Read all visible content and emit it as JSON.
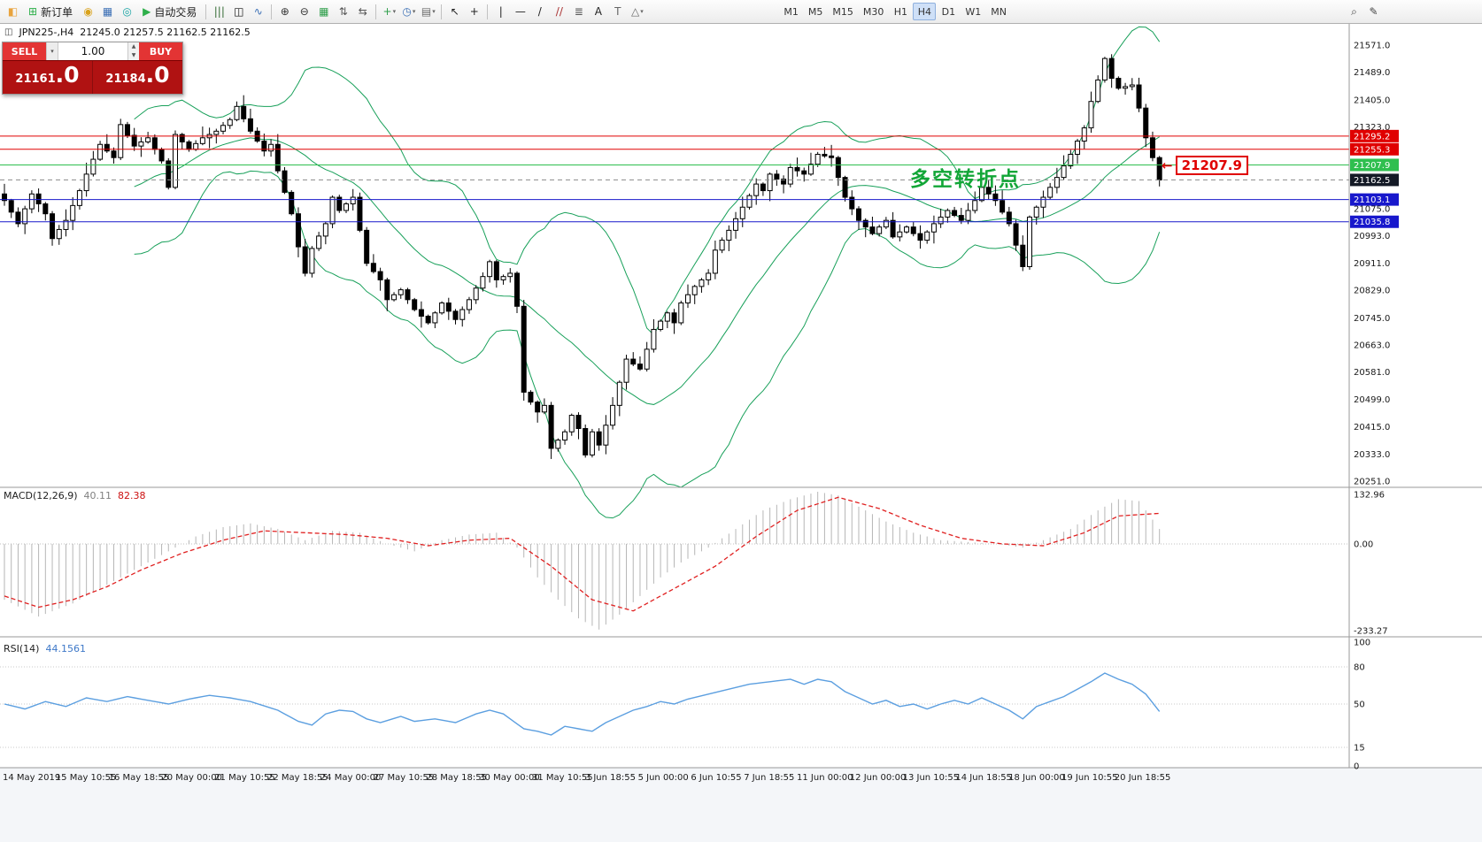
{
  "icons": {
    "chart_window": "◫",
    "dropdown": "▾",
    "spin_up": "▲",
    "spin_down": "▼",
    "callout_arrow": "←"
  },
  "toolbar": {
    "left_items": [
      {
        "type": "icon",
        "name": "app-icon",
        "glyph": "◧",
        "color": "#e8a33d"
      },
      {
        "type": "button",
        "name": "new-order-button",
        "label": "新订单",
        "glyph": "⊞",
        "color": "#2eaf4a"
      },
      {
        "type": "icon",
        "name": "coins-icon",
        "glyph": "◉",
        "color": "#d9a21b"
      },
      {
        "type": "icon",
        "name": "accounts-icon",
        "glyph": "▦",
        "color": "#3b6fb5"
      },
      {
        "type": "icon",
        "name": "sound-icon",
        "glyph": "◎",
        "color": "#18a3a3"
      },
      {
        "type": "button",
        "name": "autotrading-button",
        "label": "自动交易",
        "glyph": "▶",
        "color": "#2eaf4a"
      },
      {
        "type": "sep"
      },
      {
        "type": "icon",
        "name": "bar-chart-icon",
        "glyph": "|||",
        "color": "#356c35"
      },
      {
        "type": "icon",
        "name": "candlestick-chart-icon",
        "glyph": "◫",
        "color": "#111111"
      },
      {
        "type": "icon",
        "name": "line-chart-icon",
        "glyph": "∿",
        "color": "#3b6fb5"
      },
      {
        "type": "sep"
      },
      {
        "type": "icon",
        "name": "zoom-in-icon",
        "glyph": "⊕",
        "color": "#333333"
      },
      {
        "type": "icon",
        "name": "zoom-out-icon",
        "glyph": "⊖",
        "color": "#333333"
      },
      {
        "type": "icon",
        "name": "tile-windows-icon",
        "glyph": "▦",
        "color": "#2e9e4a"
      },
      {
        "type": "icon",
        "name": "auto-arrange-icon",
        "glyph": "⇅",
        "color": "#555555"
      },
      {
        "type": "icon",
        "name": "track-chart-icon",
        "glyph": "⇆",
        "color": "#555555"
      },
      {
        "type": "sep"
      },
      {
        "type": "icon-dd",
        "name": "add-indicator-icon",
        "glyph": "+",
        "color": "#2e9e4a"
      },
      {
        "type": "icon-dd",
        "name": "periods-icon",
        "glyph": "◷",
        "color": "#3b6fb5"
      },
      {
        "type": "icon-dd",
        "name": "templates-icon",
        "glyph": "▤",
        "color": "#6b6b6b"
      },
      {
        "type": "sep"
      },
      {
        "type": "icon",
        "name": "cursor-icon",
        "glyph": "↖",
        "color": "#222222"
      },
      {
        "type": "icon",
        "name": "crosshair-icon",
        "glyph": "+",
        "color": "#222222"
      },
      {
        "type": "sep"
      },
      {
        "type": "icon",
        "name": "vertical-line-icon",
        "glyph": "|",
        "color": "#222222"
      },
      {
        "type": "icon",
        "name": "horizontal-line-icon",
        "glyph": "—",
        "color": "#222222"
      },
      {
        "type": "icon",
        "name": "trendline-icon",
        "glyph": "/",
        "color": "#222222"
      },
      {
        "type": "icon",
        "name": "equidistant-channel-icon",
        "glyph": "//",
        "color": "#aa3333"
      },
      {
        "type": "icon",
        "name": "fibonacci-icon",
        "glyph": "≣",
        "color": "#555555"
      },
      {
        "type": "icon",
        "name": "text-icon",
        "glyph": "A",
        "color": "#222222"
      },
      {
        "type": "icon",
        "name": "text-label-icon",
        "glyph": "T",
        "color": "#666666"
      },
      {
        "type": "icon-dd",
        "name": "arrows-icon",
        "glyph": "△",
        "color": "#666666"
      }
    ],
    "timeframes": [
      "M1",
      "M5",
      "M15",
      "M30",
      "H1",
      "H4",
      "D1",
      "W1",
      "MN"
    ],
    "active_timeframe": "H4",
    "right_items": [
      {
        "name": "search-icon",
        "glyph": "⌕",
        "color": "#444444"
      },
      {
        "name": "quick-draw-icon",
        "glyph": "✎",
        "color": "#444444"
      }
    ]
  },
  "symbol_header": {
    "symbol_period": "JPN225-,H4",
    "ohlc": "21245.0 21257.5 21162.5 21162.5"
  },
  "trade_panel": {
    "sell_label": "SELL",
    "buy_label": "BUY",
    "volume": "1.00",
    "sell_price_main": "21161",
    "sell_price_frac": ".0",
    "buy_price_main": "21184",
    "buy_price_frac": ".0"
  },
  "chart": {
    "annotation": "多空转折点",
    "price_callout": "21207.9",
    "levels": [
      {
        "price": 21295.2,
        "label": "21295.2",
        "color": "#e00000",
        "style": "solid",
        "badge": "#e00000",
        "text": "#ffffff"
      },
      {
        "price": 21255.3,
        "label": "21255.3",
        "color": "#e00000",
        "style": "solid",
        "badge": "#e00000",
        "text": "#ffffff"
      },
      {
        "price": 21207.9,
        "label": "21207.9",
        "color": "#2fbf4f",
        "style": "solid",
        "badge": "#2fbf4f",
        "text": "#ffffff"
      },
      {
        "price": 21162.5,
        "label": "21162.5",
        "color": "#8a8a8a",
        "style": "dashed",
        "badge": "#141a26",
        "text": "#ffffff"
      },
      {
        "price": 21103.1,
        "label": "21103.1",
        "color": "#1818cc",
        "style": "solid",
        "badge": "#1818cc",
        "text": "#ffffff"
      },
      {
        "price": 21035.8,
        "label": "21035.8",
        "color": "#1818cc",
        "style": "solid",
        "badge": "#1818cc",
        "text": "#ffffff"
      }
    ],
    "y_axis_labels": [
      21571.0,
      21489.0,
      21405.0,
      21323.0,
      21075.0,
      20993.0,
      20911.0,
      20829.0,
      20745.0,
      20663.0,
      20581.0,
      20499.0,
      20415.0,
      20333.0,
      20251.0
    ],
    "x_axis_labels": [
      "14 May 2019",
      "15 May 10:55",
      "16 May 18:55",
      "20 May 00:00",
      "21 May 10:55",
      "22 May 18:55",
      "24 May 00:00",
      "27 May 10:55",
      "28 May 18:55",
      "30 May 00:00",
      "31 May 10:55",
      "3 Jun 18:55",
      "5 Jun 00:00",
      "6 Jun 10:55",
      "7 Jun 18:55",
      "11 Jun 00:00",
      "12 Jun 00:00",
      "13 Jun 10:55",
      "14 Jun 18:55",
      "18 Jun 00:00",
      "19 Jun 10:55",
      "20 Jun 18:55"
    ]
  },
  "chart_data": {
    "type": "candlestick",
    "symbol": "JPN225-",
    "timeframe": "H4",
    "last_ohlc": {
      "open": 21245.0,
      "high": 21257.5,
      "low": 21162.5,
      "close": 21162.5
    },
    "price_range": {
      "min": 20240,
      "max": 21600
    },
    "candle_count": 170,
    "close_anchors": [
      [
        0,
        21100
      ],
      [
        2,
        21030
      ],
      [
        4,
        21120
      ],
      [
        6,
        21060
      ],
      [
        7,
        20985
      ],
      [
        9,
        21040
      ],
      [
        11,
        21130
      ],
      [
        12,
        21180
      ],
      [
        14,
        21270
      ],
      [
        16,
        21230
      ],
      [
        17,
        21330
      ],
      [
        19,
        21265
      ],
      [
        21,
        21290
      ],
      [
        23,
        21220
      ],
      [
        24,
        21140
      ],
      [
        25,
        21300
      ],
      [
        27,
        21255
      ],
      [
        29,
        21290
      ],
      [
        31,
        21310
      ],
      [
        33,
        21345
      ],
      [
        34,
        21385
      ],
      [
        36,
        21310
      ],
      [
        38,
        21250
      ],
      [
        39,
        21270
      ],
      [
        40,
        21190
      ],
      [
        42,
        21060
      ],
      [
        43,
        20960
      ],
      [
        44,
        20880
      ],
      [
        45,
        20955
      ],
      [
        47,
        21030
      ],
      [
        48,
        21110
      ],
      [
        49,
        21070
      ],
      [
        51,
        21110
      ],
      [
        52,
        21010
      ],
      [
        53,
        20910
      ],
      [
        55,
        20860
      ],
      [
        56,
        20800
      ],
      [
        58,
        20830
      ],
      [
        60,
        20770
      ],
      [
        62,
        20730
      ],
      [
        64,
        20790
      ],
      [
        66,
        20740
      ],
      [
        68,
        20800
      ],
      [
        70,
        20870
      ],
      [
        71,
        20915
      ],
      [
        72,
        20860
      ],
      [
        74,
        20880
      ],
      [
        75,
        20780
      ],
      [
        76,
        20520
      ],
      [
        78,
        20460
      ],
      [
        79,
        20480
      ],
      [
        80,
        20350
      ],
      [
        82,
        20400
      ],
      [
        83,
        20450
      ],
      [
        84,
        20410
      ],
      [
        85,
        20330
      ],
      [
        86,
        20400
      ],
      [
        87,
        20360
      ],
      [
        89,
        20480
      ],
      [
        90,
        20550
      ],
      [
        91,
        20620
      ],
      [
        93,
        20590
      ],
      [
        94,
        20650
      ],
      [
        95,
        20710
      ],
      [
        97,
        20760
      ],
      [
        98,
        20730
      ],
      [
        99,
        20790
      ],
      [
        101,
        20840
      ],
      [
        103,
        20880
      ],
      [
        104,
        20950
      ],
      [
        106,
        21010
      ],
      [
        108,
        21080
      ],
      [
        110,
        21150
      ],
      [
        111,
        21130
      ],
      [
        112,
        21180
      ],
      [
        114,
        21150
      ],
      [
        115,
        21200
      ],
      [
        117,
        21180
      ],
      [
        119,
        21240
      ],
      [
        121,
        21230
      ],
      [
        122,
        21170
      ],
      [
        123,
        21110
      ],
      [
        125,
        21040
      ],
      [
        127,
        21000
      ],
      [
        129,
        21040
      ],
      [
        130,
        20990
      ],
      [
        132,
        21020
      ],
      [
        134,
        20980
      ],
      [
        136,
        21030
      ],
      [
        138,
        21070
      ],
      [
        140,
        21040
      ],
      [
        142,
        21100
      ],
      [
        143,
        21140
      ],
      [
        145,
        21100
      ],
      [
        147,
        21030
      ],
      [
        149,
        20900
      ],
      [
        150,
        21050
      ],
      [
        152,
        21110
      ],
      [
        154,
        21170
      ],
      [
        156,
        21240
      ],
      [
        158,
        21320
      ],
      [
        159,
        21400
      ],
      [
        161,
        21530
      ],
      [
        162,
        21470
      ],
      [
        163,
        21440
      ],
      [
        165,
        21450
      ],
      [
        166,
        21380
      ],
      [
        167,
        21290
      ],
      [
        168,
        21230
      ],
      [
        169,
        21162.5
      ]
    ],
    "overlays": {
      "name": "Bollinger Bands",
      "period": 20,
      "deviation": 2,
      "color": "#18a05a"
    },
    "horizontal_line_prices": [
      21295.2,
      21255.3,
      21207.9,
      21103.1,
      21035.8
    ],
    "bid_price": 21162.5,
    "macd": {
      "label": "MACD(12,26,9)",
      "main_value": "40.11",
      "signal_value": "82.38",
      "axis": [
        132.96,
        0,
        -233.27
      ],
      "range": {
        "min": -240,
        "max": 140
      },
      "hist_anchors": [
        [
          0,
          -150
        ],
        [
          5,
          -195
        ],
        [
          10,
          -160
        ],
        [
          15,
          -110
        ],
        [
          20,
          -60
        ],
        [
          25,
          -10
        ],
        [
          28,
          20
        ],
        [
          32,
          45
        ],
        [
          36,
          55
        ],
        [
          40,
          40
        ],
        [
          44,
          10
        ],
        [
          48,
          35
        ],
        [
          52,
          30
        ],
        [
          56,
          0
        ],
        [
          60,
          -20
        ],
        [
          64,
          10
        ],
        [
          68,
          25
        ],
        [
          72,
          30
        ],
        [
          75,
          -10
        ],
        [
          78,
          -90
        ],
        [
          81,
          -150
        ],
        [
          84,
          -200
        ],
        [
          87,
          -230
        ],
        [
          90,
          -190
        ],
        [
          93,
          -140
        ],
        [
          96,
          -90
        ],
        [
          99,
          -50
        ],
        [
          103,
          -10
        ],
        [
          107,
          40
        ],
        [
          111,
          90
        ],
        [
          115,
          120
        ],
        [
          119,
          140
        ],
        [
          122,
          130
        ],
        [
          125,
          100
        ],
        [
          129,
          60
        ],
        [
          133,
          30
        ],
        [
          137,
          10
        ],
        [
          141,
          5
        ],
        [
          145,
          0
        ],
        [
          149,
          -10
        ],
        [
          152,
          10
        ],
        [
          156,
          40
        ],
        [
          160,
          90
        ],
        [
          163,
          120
        ],
        [
          166,
          115
        ],
        [
          169,
          40
        ]
      ],
      "signal_anchors": [
        [
          0,
          -140
        ],
        [
          5,
          -170
        ],
        [
          10,
          -150
        ],
        [
          15,
          -115
        ],
        [
          20,
          -70
        ],
        [
          26,
          -25
        ],
        [
          32,
          10
        ],
        [
          38,
          35
        ],
        [
          44,
          30
        ],
        [
          50,
          25
        ],
        [
          56,
          15
        ],
        [
          62,
          -5
        ],
        [
          68,
          10
        ],
        [
          74,
          15
        ],
        [
          80,
          -60
        ],
        [
          86,
          -150
        ],
        [
          92,
          -180
        ],
        [
          98,
          -120
        ],
        [
          104,
          -60
        ],
        [
          110,
          20
        ],
        [
          116,
          90
        ],
        [
          122,
          125
        ],
        [
          128,
          95
        ],
        [
          134,
          50
        ],
        [
          140,
          15
        ],
        [
          146,
          0
        ],
        [
          152,
          -5
        ],
        [
          158,
          30
        ],
        [
          163,
          75
        ],
        [
          169,
          82
        ]
      ]
    },
    "rsi": {
      "label": "RSI(14)",
      "value": "44.1561",
      "axis": [
        100,
        80,
        50,
        15,
        0
      ],
      "levels": [
        80,
        50,
        15
      ],
      "anchors": [
        [
          0,
          50
        ],
        [
          3,
          46
        ],
        [
          6,
          52
        ],
        [
          9,
          48
        ],
        [
          12,
          55
        ],
        [
          15,
          52
        ],
        [
          18,
          56
        ],
        [
          21,
          53
        ],
        [
          24,
          50
        ],
        [
          27,
          54
        ],
        [
          30,
          57
        ],
        [
          33,
          55
        ],
        [
          36,
          52
        ],
        [
          40,
          45
        ],
        [
          43,
          36
        ],
        [
          45,
          33
        ],
        [
          47,
          42
        ],
        [
          49,
          45
        ],
        [
          51,
          44
        ],
        [
          53,
          38
        ],
        [
          55,
          35
        ],
        [
          58,
          40
        ],
        [
          60,
          36
        ],
        [
          63,
          38
        ],
        [
          66,
          35
        ],
        [
          69,
          42
        ],
        [
          71,
          45
        ],
        [
          73,
          42
        ],
        [
          76,
          30
        ],
        [
          78,
          28
        ],
        [
          80,
          25
        ],
        [
          82,
          32
        ],
        [
          84,
          30
        ],
        [
          86,
          28
        ],
        [
          88,
          35
        ],
        [
          90,
          40
        ],
        [
          92,
          45
        ],
        [
          94,
          48
        ],
        [
          96,
          52
        ],
        [
          98,
          50
        ],
        [
          100,
          54
        ],
        [
          103,
          58
        ],
        [
          106,
          62
        ],
        [
          109,
          66
        ],
        [
          112,
          68
        ],
        [
          115,
          70
        ],
        [
          117,
          66
        ],
        [
          119,
          70
        ],
        [
          121,
          68
        ],
        [
          123,
          60
        ],
        [
          125,
          55
        ],
        [
          127,
          50
        ],
        [
          129,
          53
        ],
        [
          131,
          48
        ],
        [
          133,
          50
        ],
        [
          135,
          46
        ],
        [
          137,
          50
        ],
        [
          139,
          53
        ],
        [
          141,
          50
        ],
        [
          143,
          55
        ],
        [
          145,
          50
        ],
        [
          147,
          45
        ],
        [
          149,
          38
        ],
        [
          151,
          48
        ],
        [
          153,
          52
        ],
        [
          155,
          56
        ],
        [
          157,
          62
        ],
        [
          159,
          68
        ],
        [
          161,
          75
        ],
        [
          163,
          70
        ],
        [
          165,
          66
        ],
        [
          167,
          58
        ],
        [
          169,
          44
        ]
      ]
    }
  }
}
